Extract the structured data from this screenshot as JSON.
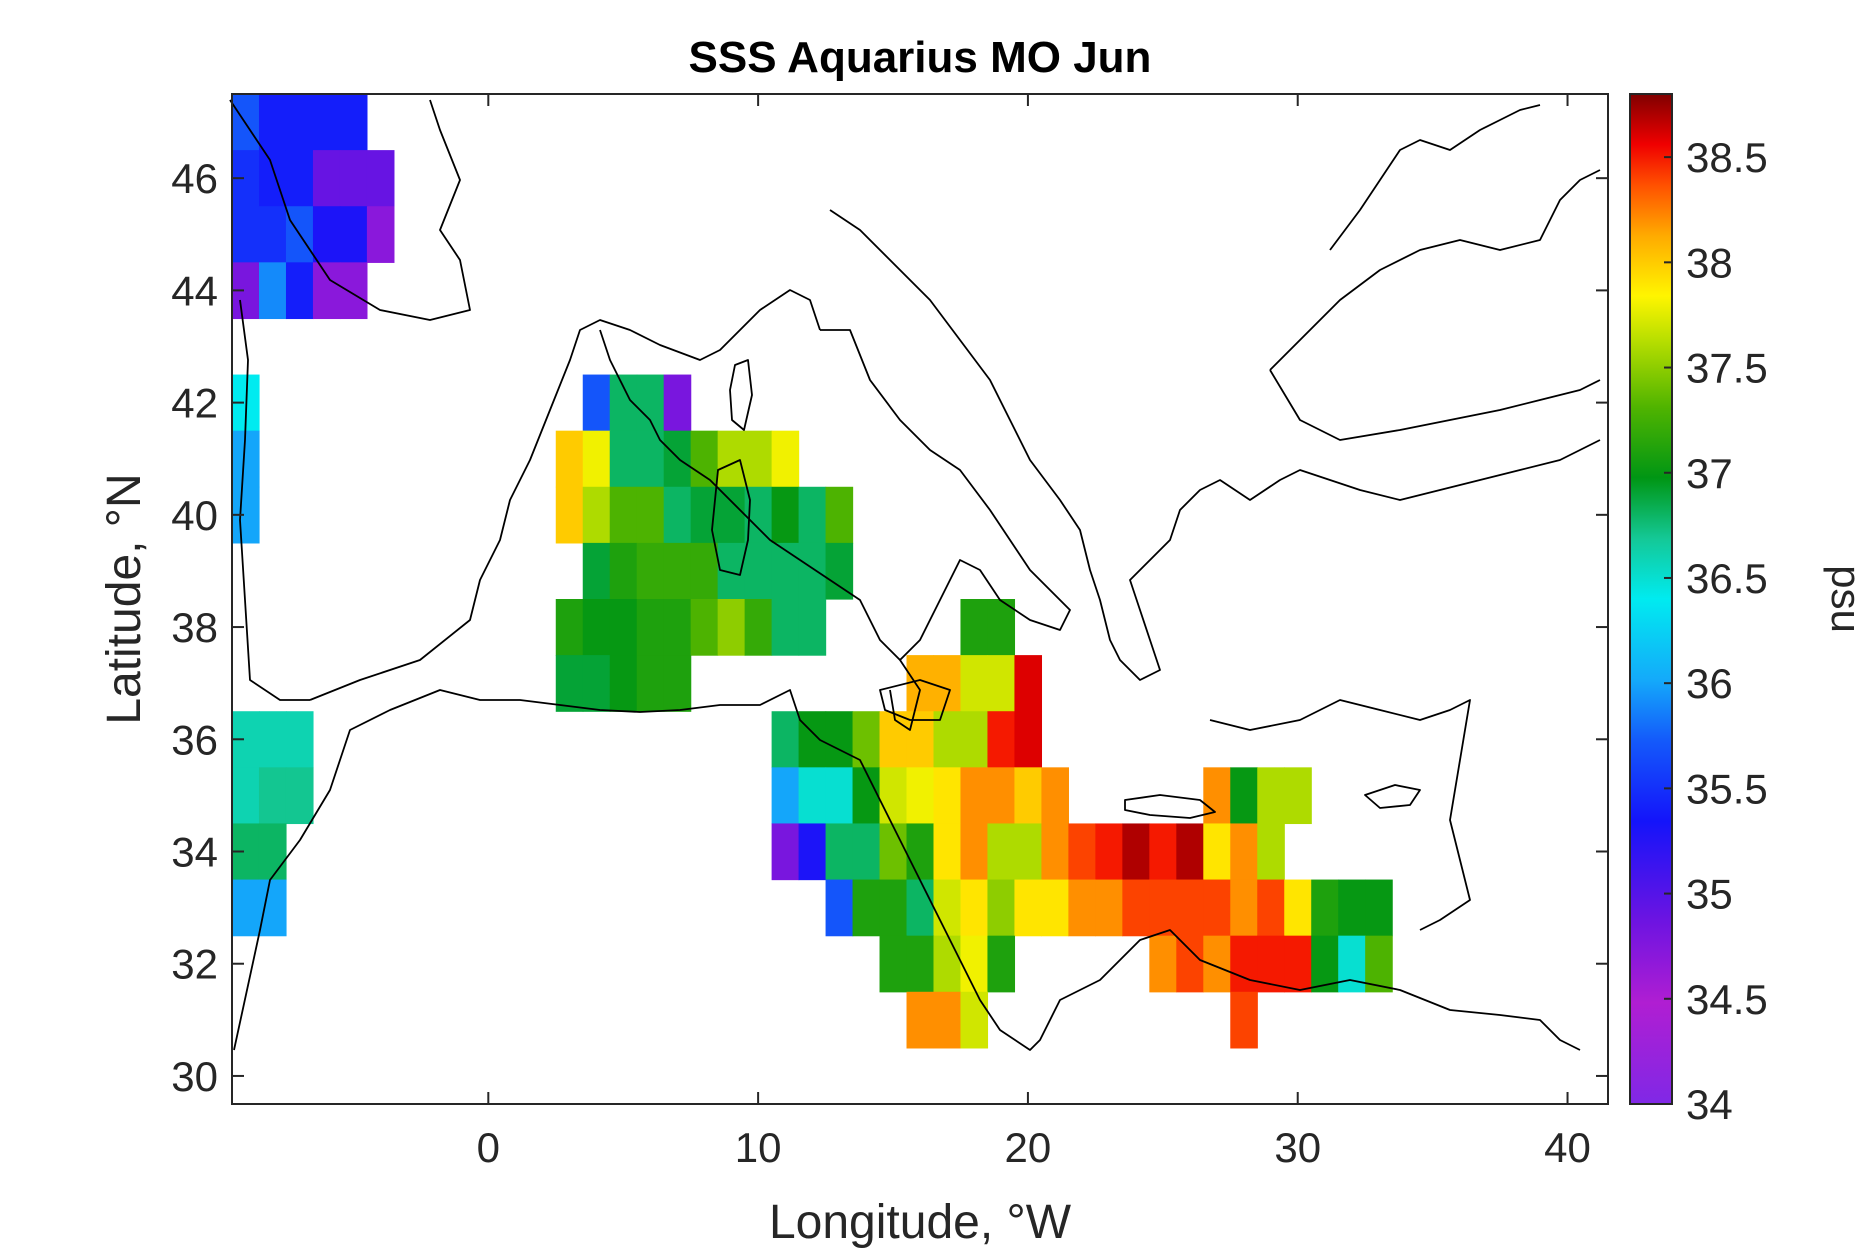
{
  "chart_data": {
    "type": "heatmap",
    "title": "SSS Aquarius MO Jun",
    "xlabel": "Longitude, °W",
    "ylabel": "Latitude, °N",
    "colorbar_label": "psu",
    "xlim": [
      -9.5,
      41.5
    ],
    "ylim": [
      29.5,
      47.5
    ],
    "clim": [
      34,
      38.8
    ],
    "x_ticks": [
      "0",
      "10",
      "20",
      "30",
      "40"
    ],
    "x_tick_values": [
      0,
      10,
      20,
      30,
      40
    ],
    "y_ticks": [
      "30",
      "32",
      "34",
      "36",
      "38",
      "40",
      "42",
      "44",
      "46"
    ],
    "y_tick_values": [
      30,
      32,
      34,
      36,
      38,
      40,
      42,
      44,
      46
    ],
    "colorbar_ticks": [
      "34",
      "34.5",
      "35",
      "35.5",
      "36",
      "36.5",
      "37",
      "37.5",
      "38",
      "38.5"
    ],
    "colorbar_tick_values": [
      34,
      34.5,
      35,
      35.5,
      36,
      36.5,
      37,
      37.5,
      38,
      38.5
    ],
    "colormap": "jet-like (purple-blue-cyan-green-yellow-red-darkred)",
    "cell_size_deg": 1,
    "cells": [
      {
        "lon": -9,
        "lat": 47,
        "sss": 35.7
      },
      {
        "lon": -8,
        "lat": 47,
        "sss": 35.4
      },
      {
        "lon": -7,
        "lat": 47,
        "sss": 35.4
      },
      {
        "lon": -6,
        "lat": 47,
        "sss": 35.4
      },
      {
        "lon": -5,
        "lat": 47,
        "sss": 35.4
      },
      {
        "lon": -9,
        "lat": 46,
        "sss": 35.5
      },
      {
        "lon": -8,
        "lat": 46,
        "sss": 35.4
      },
      {
        "lon": -7,
        "lat": 46,
        "sss": 35.4
      },
      {
        "lon": -6,
        "lat": 46,
        "sss": 34.9
      },
      {
        "lon": -5,
        "lat": 46,
        "sss": 34.9
      },
      {
        "lon": -4,
        "lat": 46,
        "sss": 34.9
      },
      {
        "lon": -9,
        "lat": 45,
        "sss": 35.5
      },
      {
        "lon": -8,
        "lat": 45,
        "sss": 35.5
      },
      {
        "lon": -7,
        "lat": 45,
        "sss": 35.7
      },
      {
        "lon": -6,
        "lat": 45,
        "sss": 35.3
      },
      {
        "lon": -5,
        "lat": 45,
        "sss": 35.3
      },
      {
        "lon": -4,
        "lat": 45,
        "sss": 34.7
      },
      {
        "lon": -9,
        "lat": 44,
        "sss": 34.8
      },
      {
        "lon": -8,
        "lat": 44,
        "sss": 35.9
      },
      {
        "lon": -7,
        "lat": 44,
        "sss": 35.4
      },
      {
        "lon": -6,
        "lat": 44,
        "sss": 34.7
      },
      {
        "lon": -5,
        "lat": 44,
        "sss": 34.7
      },
      {
        "lon": -9,
        "lat": 42,
        "sss": 36.4
      },
      {
        "lon": -9,
        "lat": 41,
        "sss": 36.0
      },
      {
        "lon": -9,
        "lat": 40,
        "sss": 36.0
      },
      {
        "lon": 4,
        "lat": 42,
        "sss": 35.7
      },
      {
        "lon": 5,
        "lat": 42,
        "sss": 36.8
      },
      {
        "lon": 6,
        "lat": 42,
        "sss": 36.8
      },
      {
        "lon": 7,
        "lat": 42,
        "sss": 34.8
      },
      {
        "lon": 3,
        "lat": 41,
        "sss": 38.0
      },
      {
        "lon": 4,
        "lat": 41,
        "sss": 37.8
      },
      {
        "lon": 5,
        "lat": 41,
        "sss": 36.8
      },
      {
        "lon": 6,
        "lat": 41,
        "sss": 36.8
      },
      {
        "lon": 7,
        "lat": 41,
        "sss": 36.9
      },
      {
        "lon": 8,
        "lat": 41,
        "sss": 37.3
      },
      {
        "lon": 9,
        "lat": 41,
        "sss": 37.6
      },
      {
        "lon": 10,
        "lat": 41,
        "sss": 37.6
      },
      {
        "lon": 11,
        "lat": 41,
        "sss": 37.8
      },
      {
        "lon": 3,
        "lat": 40,
        "sss": 38.0
      },
      {
        "lon": 4,
        "lat": 40,
        "sss": 37.6
      },
      {
        "lon": 5,
        "lat": 40,
        "sss": 37.3
      },
      {
        "lon": 6,
        "lat": 40,
        "sss": 37.3
      },
      {
        "lon": 7,
        "lat": 40,
        "sss": 36.8
      },
      {
        "lon": 8,
        "lat": 40,
        "sss": 36.9
      },
      {
        "lon": 9,
        "lat": 40,
        "sss": 36.9
      },
      {
        "lon": 10,
        "lat": 40,
        "sss": 36.8
      },
      {
        "lon": 11,
        "lat": 40,
        "sss": 37.0
      },
      {
        "lon": 12,
        "lat": 40,
        "sss": 36.8
      },
      {
        "lon": 13,
        "lat": 40,
        "sss": 37.3
      },
      {
        "lon": 4,
        "lat": 39,
        "sss": 36.9
      },
      {
        "lon": 5,
        "lat": 39,
        "sss": 37.1
      },
      {
        "lon": 6,
        "lat": 39,
        "sss": 37.2
      },
      {
        "lon": 7,
        "lat": 39,
        "sss": 37.2
      },
      {
        "lon": 8,
        "lat": 39,
        "sss": 37.2
      },
      {
        "lon": 9,
        "lat": 39,
        "sss": 36.8
      },
      {
        "lon": 10,
        "lat": 39,
        "sss": 36.8
      },
      {
        "lon": 11,
        "lat": 39,
        "sss": 36.8
      },
      {
        "lon": 12,
        "lat": 39,
        "sss": 36.8
      },
      {
        "lon": 13,
        "lat": 39,
        "sss": 36.9
      },
      {
        "lon": 3,
        "lat": 38,
        "sss": 37.1
      },
      {
        "lon": 4,
        "lat": 38,
        "sss": 37.0
      },
      {
        "lon": 5,
        "lat": 38,
        "sss": 37.0
      },
      {
        "lon": 6,
        "lat": 38,
        "sss": 37.1
      },
      {
        "lon": 7,
        "lat": 38,
        "sss": 37.1
      },
      {
        "lon": 8,
        "lat": 38,
        "sss": 37.3
      },
      {
        "lon": 9,
        "lat": 38,
        "sss": 37.5
      },
      {
        "lon": 10,
        "lat": 38,
        "sss": 37.2
      },
      {
        "lon": 11,
        "lat": 38,
        "sss": 36.8
      },
      {
        "lon": 12,
        "lat": 38,
        "sss": 36.8
      },
      {
        "lon": 3,
        "lat": 37,
        "sss": 36.9
      },
      {
        "lon": 4,
        "lat": 37,
        "sss": 36.9
      },
      {
        "lon": 5,
        "lat": 37,
        "sss": 37.0
      },
      {
        "lon": 6,
        "lat": 37,
        "sss": 37.1
      },
      {
        "lon": 7,
        "lat": 37,
        "sss": 37.1
      },
      {
        "lon": 18,
        "lat": 38,
        "sss": 37.1
      },
      {
        "lon": 19,
        "lat": 38,
        "sss": 37.1
      },
      {
        "lon": 16,
        "lat": 37,
        "sss": 38.1
      },
      {
        "lon": 17,
        "lat": 37,
        "sss": 38.1
      },
      {
        "lon": 18,
        "lat": 37,
        "sss": 37.7
      },
      {
        "lon": 19,
        "lat": 37,
        "sss": 37.7
      },
      {
        "lon": 20,
        "lat": 37,
        "sss": 38.6
      },
      {
        "lon": 11,
        "lat": 36,
        "sss": 36.8
      },
      {
        "lon": 12,
        "lat": 36,
        "sss": 37.0
      },
      {
        "lon": 13,
        "lat": 36,
        "sss": 37.0
      },
      {
        "lon": 14,
        "lat": 36,
        "sss": 37.4
      },
      {
        "lon": 15,
        "lat": 36,
        "sss": 38.0
      },
      {
        "lon": 16,
        "lat": 36,
        "sss": 38.0
      },
      {
        "lon": 17,
        "lat": 36,
        "sss": 37.6
      },
      {
        "lon": 18,
        "lat": 36,
        "sss": 37.6
      },
      {
        "lon": 19,
        "lat": 36,
        "sss": 38.5
      },
      {
        "lon": 20,
        "lat": 36,
        "sss": 38.6
      },
      {
        "lon": 11,
        "lat": 35,
        "sss": 36.0
      },
      {
        "lon": 12,
        "lat": 35,
        "sss": 36.5
      },
      {
        "lon": 13,
        "lat": 35,
        "sss": 36.5
      },
      {
        "lon": 14,
        "lat": 35,
        "sss": 37.0
      },
      {
        "lon": 15,
        "lat": 35,
        "sss": 37.7
      },
      {
        "lon": 16,
        "lat": 35,
        "sss": 37.8
      },
      {
        "lon": 17,
        "lat": 35,
        "sss": 37.9
      },
      {
        "lon": 18,
        "lat": 35,
        "sss": 38.2
      },
      {
        "lon": 19,
        "lat": 35,
        "sss": 38.2
      },
      {
        "lon": 20,
        "lat": 35,
        "sss": 38.0
      },
      {
        "lon": 21,
        "lat": 35,
        "sss": 38.2
      },
      {
        "lon": 27,
        "lat": 35,
        "sss": 38.2
      },
      {
        "lon": 28,
        "lat": 35,
        "sss": 37.0
      },
      {
        "lon": 29,
        "lat": 35,
        "sss": 37.6
      },
      {
        "lon": 30,
        "lat": 35,
        "sss": 37.6
      },
      {
        "lon": 11,
        "lat": 34,
        "sss": 34.8
      },
      {
        "lon": 12,
        "lat": 34,
        "sss": 35.3
      },
      {
        "lon": 13,
        "lat": 34,
        "sss": 36.8
      },
      {
        "lon": 14,
        "lat": 34,
        "sss": 36.8
      },
      {
        "lon": 15,
        "lat": 34,
        "sss": 37.4
      },
      {
        "lon": 16,
        "lat": 34,
        "sss": 37.1
      },
      {
        "lon": 17,
        "lat": 34,
        "sss": 37.9
      },
      {
        "lon": 18,
        "lat": 34,
        "sss": 38.2
      },
      {
        "lon": 19,
        "lat": 34,
        "sss": 37.6
      },
      {
        "lon": 20,
        "lat": 34,
        "sss": 37.6
      },
      {
        "lon": 21,
        "lat": 34,
        "sss": 38.2
      },
      {
        "lon": 22,
        "lat": 34,
        "sss": 38.4
      },
      {
        "lon": 23,
        "lat": 34,
        "sss": 38.5
      },
      {
        "lon": 24,
        "lat": 34,
        "sss": 38.7
      },
      {
        "lon": 25,
        "lat": 34,
        "sss": 38.5
      },
      {
        "lon": 26,
        "lat": 34,
        "sss": 38.7
      },
      {
        "lon": 27,
        "lat": 34,
        "sss": 37.9
      },
      {
        "lon": 28,
        "lat": 34,
        "sss": 38.2
      },
      {
        "lon": 29,
        "lat": 34,
        "sss": 37.6
      },
      {
        "lon": 13,
        "lat": 33,
        "sss": 35.7
      },
      {
        "lon": 14,
        "lat": 33,
        "sss": 37.1
      },
      {
        "lon": 15,
        "lat": 33,
        "sss": 37.1
      },
      {
        "lon": 16,
        "lat": 33,
        "sss": 36.8
      },
      {
        "lon": 17,
        "lat": 33,
        "sss": 37.7
      },
      {
        "lon": 18,
        "lat": 33,
        "sss": 37.9
      },
      {
        "lon": 19,
        "lat": 33,
        "sss": 37.5
      },
      {
        "lon": 20,
        "lat": 33,
        "sss": 37.9
      },
      {
        "lon": 21,
        "lat": 33,
        "sss": 37.9
      },
      {
        "lon": 22,
        "lat": 33,
        "sss": 38.2
      },
      {
        "lon": 23,
        "lat": 33,
        "sss": 38.2
      },
      {
        "lon": 24,
        "lat": 33,
        "sss": 38.4
      },
      {
        "lon": 25,
        "lat": 33,
        "sss": 38.4
      },
      {
        "lon": 26,
        "lat": 33,
        "sss": 38.4
      },
      {
        "lon": 27,
        "lat": 33,
        "sss": 38.4
      },
      {
        "lon": 28,
        "lat": 33,
        "sss": 38.2
      },
      {
        "lon": 29,
        "lat": 33,
        "sss": 38.4
      },
      {
        "lon": 30,
        "lat": 33,
        "sss": 37.9
      },
      {
        "lon": 31,
        "lat": 33,
        "sss": 37.1
      },
      {
        "lon": 32,
        "lat": 33,
        "sss": 37.0
      },
      {
        "lon": 33,
        "lat": 33,
        "sss": 37.0
      },
      {
        "lon": 15,
        "lat": 32,
        "sss": 37.1
      },
      {
        "lon": 16,
        "lat": 32,
        "sss": 37.1
      },
      {
        "lon": 17,
        "lat": 32,
        "sss": 37.6
      },
      {
        "lon": 18,
        "lat": 32,
        "sss": 37.8
      },
      {
        "lon": 19,
        "lat": 32,
        "sss": 37.1
      },
      {
        "lon": 25,
        "lat": 32,
        "sss": 38.2
      },
      {
        "lon": 26,
        "lat": 32,
        "sss": 38.4
      },
      {
        "lon": 27,
        "lat": 32,
        "sss": 38.2
      },
      {
        "lon": 28,
        "lat": 32,
        "sss": 38.5
      },
      {
        "lon": 29,
        "lat": 32,
        "sss": 38.5
      },
      {
        "lon": 30,
        "lat": 32,
        "sss": 38.5
      },
      {
        "lon": 31,
        "lat": 32,
        "sss": 37.0
      },
      {
        "lon": 32,
        "lat": 32,
        "sss": 36.5
      },
      {
        "lon": 33,
        "lat": 32,
        "sss": 37.3
      },
      {
        "lon": 16,
        "lat": 31,
        "sss": 38.2
      },
      {
        "lon": 17,
        "lat": 31,
        "sss": 38.2
      },
      {
        "lon": 18,
        "lat": 31,
        "sss": 37.7
      },
      {
        "lon": 28,
        "lat": 31,
        "sss": 38.4
      },
      {
        "lon": -9,
        "lat": 36,
        "sss": 36.6
      },
      {
        "lon": -8,
        "lat": 36,
        "sss": 36.6
      },
      {
        "lon": -7,
        "lat": 36,
        "sss": 36.6
      },
      {
        "lon": -9,
        "lat": 35,
        "sss": 36.6
      },
      {
        "lon": -8,
        "lat": 35,
        "sss": 36.7
      },
      {
        "lon": -7,
        "lat": 35,
        "sss": 36.7
      },
      {
        "lon": -9,
        "lat": 34,
        "sss": 36.8
      },
      {
        "lon": -8,
        "lat": 34,
        "sss": 36.8
      },
      {
        "lon": -9,
        "lat": 33,
        "sss": 36.0
      },
      {
        "lon": -8,
        "lat": 33,
        "sss": 36.0
      }
    ]
  }
}
